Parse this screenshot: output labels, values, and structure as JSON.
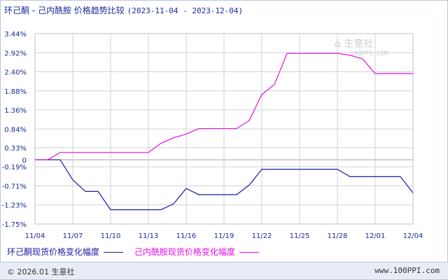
{
  "header": {
    "title": "环己酮 - 己内酰胺 价格趋势比较",
    "range": "(2023-11-04 - 2023-12-04)"
  },
  "watermark": {
    "name": "生意社",
    "url": "100PPI.COM"
  },
  "footer": {
    "copyright": "© 2026.01 生意社",
    "site": "www.100PPI.com"
  },
  "colors": {
    "series1": "#1a1aa6",
    "series2": "#e010e0",
    "grid": "#d2d2d2",
    "axis": "#1a2a9a"
  },
  "chart_data": {
    "type": "line",
    "title": "环己酮 - 己内酰胺 价格趋势比较",
    "xlabel": "",
    "ylabel": "",
    "ylim": [
      -1.75,
      3.44
    ],
    "yticks": [
      "3.44%",
      "2.92%",
      "2.40%",
      "1.88%",
      "1.36%",
      "0.84%",
      "0.33%",
      "0",
      "-0.19%",
      "-0.71%",
      "-1.23%",
      "-1.75%"
    ],
    "ytick_values": [
      3.44,
      2.92,
      2.4,
      1.88,
      1.36,
      0.84,
      0.33,
      0,
      -0.19,
      -0.71,
      -1.23,
      -1.75
    ],
    "x_ticks": [
      "11/04",
      "11/07",
      "11/10",
      "11/13",
      "11/16",
      "11/19",
      "11/22",
      "11/25",
      "11/28",
      "12/01",
      "12/04"
    ],
    "x": [
      "11/04",
      "11/05",
      "11/06",
      "11/07",
      "11/08",
      "11/09",
      "11/10",
      "11/11",
      "11/12",
      "11/13",
      "11/14",
      "11/15",
      "11/16",
      "11/17",
      "11/18",
      "11/19",
      "11/20",
      "11/21",
      "11/22",
      "11/23",
      "11/24",
      "11/25",
      "11/26",
      "11/27",
      "11/28",
      "11/29",
      "11/30",
      "12/01",
      "12/02",
      "12/03",
      "12/04"
    ],
    "grid": true,
    "legend_position": "bottom",
    "series": [
      {
        "name": "环己酮现货价格变化幅度",
        "color": "#1a1aa6",
        "values": [
          0,
          0,
          0,
          -0.55,
          -0.86,
          -0.86,
          -1.36,
          -1.36,
          -1.36,
          -1.36,
          -1.36,
          -1.2,
          -0.78,
          -0.95,
          -0.95,
          -0.95,
          -0.95,
          -0.69,
          -0.26,
          -0.26,
          -0.26,
          -0.26,
          -0.26,
          -0.26,
          -0.26,
          -0.46,
          -0.46,
          -0.46,
          -0.46,
          -0.46,
          -0.9
        ]
      },
      {
        "name": "己内酰胺现货价格变化幅度",
        "color": "#e010e0",
        "values": [
          0,
          0,
          0.2,
          0.2,
          0.2,
          0.2,
          0.2,
          0.2,
          0.2,
          0.2,
          0.45,
          0.6,
          0.7,
          0.85,
          0.85,
          0.85,
          0.85,
          1.07,
          1.78,
          2.05,
          2.9,
          2.9,
          2.9,
          2.9,
          2.9,
          2.85,
          2.75,
          2.35,
          2.35,
          2.35,
          2.35
        ]
      }
    ]
  }
}
